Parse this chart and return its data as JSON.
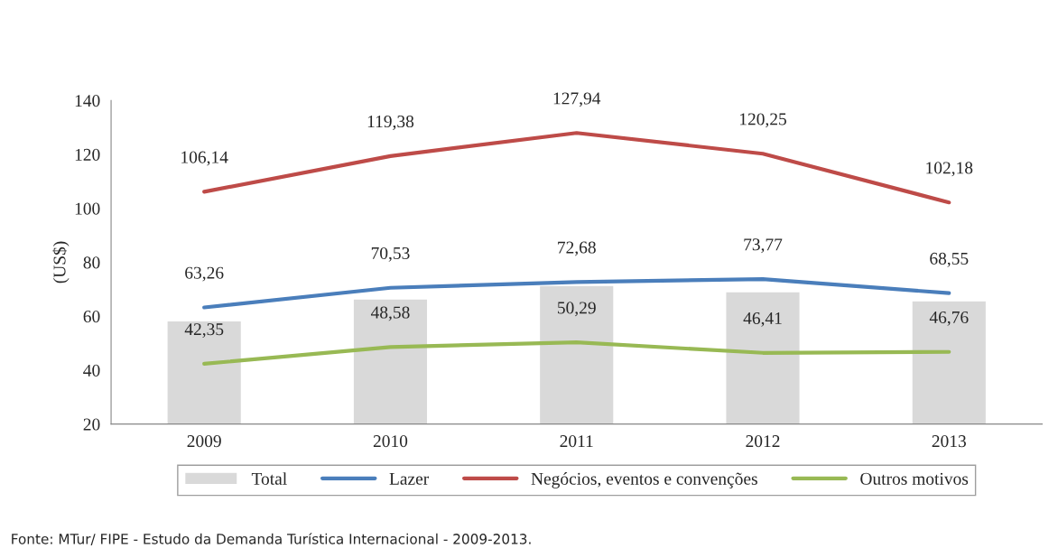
{
  "chart_data": {
    "type": "line",
    "ylabel": "(US$)",
    "categories": [
      "2009",
      "2010",
      "2011",
      "2012",
      "2013"
    ],
    "series": [
      {
        "name": "Total",
        "type": "bar",
        "color": "#d9d9d9",
        "values": [
          58.3,
          66.4,
          71.4,
          69.1,
          65.7
        ]
      },
      {
        "name": "Lazer",
        "color": "#4a7ebb",
        "values": [
          63.26,
          70.53,
          72.68,
          73.77,
          68.55
        ],
        "value_labels": [
          "63,26",
          "70,53",
          "72,68",
          "73,77",
          "68,55"
        ]
      },
      {
        "name": "Negócios, eventos e convenções",
        "color": "#be4b48",
        "values": [
          106.14,
          119.38,
          127.94,
          120.25,
          102.18
        ],
        "value_labels": [
          "106,14",
          "119,38",
          "127,94",
          "120,25",
          "102,18"
        ]
      },
      {
        "name": "Outros motivos",
        "color": "#98b954",
        "values": [
          42.35,
          48.58,
          50.29,
          46.41,
          46.76
        ],
        "value_labels": [
          "42,35",
          "48,58",
          "50,29",
          "46,41",
          "46,76"
        ]
      }
    ],
    "ylim": [
      20,
      140
    ],
    "yticks": [
      20,
      40,
      60,
      80,
      100,
      120,
      140
    ],
    "grid": false,
    "legend": "bottom",
    "marker": "none",
    "line_style": "solid",
    "annotations": [
      "Fonte: MTur/ FIPE - Estudo da Demanda Turística Internacional - 2009-2013."
    ]
  }
}
